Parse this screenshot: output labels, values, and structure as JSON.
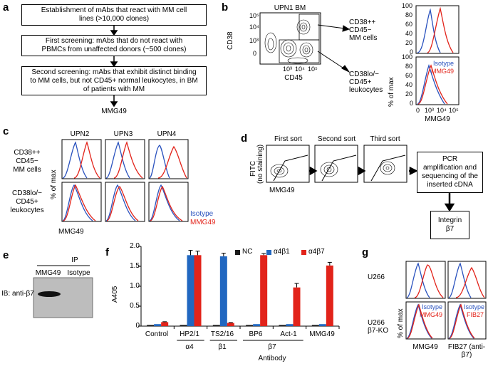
{
  "panel_a": {
    "letter": "a",
    "steps": [
      "Establishment of mAbs that react with MM cell lines (>10,000 clones)",
      "First screening: mAbs that do not react with PBMCs from unaffected donors (~500 clones)",
      "Second screening: mAbs that exhibit distinct binding to MM cells, but not CD45+ normal leukocytes, in BM of patients with MM"
    ],
    "result": "MMG49"
  },
  "panel_b": {
    "letter": "b",
    "title": "UPN1 BM",
    "x_axis": "CD45",
    "y_axis": "CD38",
    "x_ticks": [
      "10³",
      "10⁴",
      "10⁵"
    ],
    "y_ticks": [
      "10⁵",
      "10⁴",
      "10³",
      "0"
    ],
    "gate_top_label": [
      "CD38++",
      "CD45−",
      "MM cells"
    ],
    "gate_bottom_label": [
      "CD38lo/−",
      "CD45+",
      "leukocytes"
    ],
    "hist_y_label": "% of max",
    "hist_y_ticks": [
      "100",
      "80",
      "60",
      "40",
      "20",
      "0"
    ],
    "hist_x_label": "MMG49",
    "hist_x_ticks": [
      "0",
      "10³",
      "10⁴",
      "10⁵"
    ],
    "legend": [
      "Isotype",
      "MMG49"
    ]
  },
  "panel_c": {
    "letter": "c",
    "columns": [
      "UPN2",
      "UPN3",
      "UPN4"
    ],
    "row_top": [
      "CD38++",
      "CD45−",
      "MM cells"
    ],
    "row_bottom": [
      "CD38lo/−",
      "CD45+",
      "leukocytes"
    ],
    "y_label": "% of max",
    "x_label": "MMG49",
    "legend": [
      "Isotype",
      "MMG49"
    ]
  },
  "panel_d": {
    "letter": "d",
    "sorts": [
      "First sort",
      "Second sort",
      "Third sort"
    ],
    "y_label": [
      "FITC",
      "(no staining)"
    ],
    "x_label": "MMG49",
    "pcr_box": "PCR amplification and sequencing of the inserted cDNA",
    "result_box": [
      "Integrin",
      "β7"
    ]
  },
  "panel_e": {
    "letter": "e",
    "ip_label": "IP",
    "lanes": [
      "MMG49",
      "Isotype"
    ],
    "blot_label": "IB: anti-β7"
  },
  "panel_f": {
    "letter": "f",
    "chart_data": {
      "type": "bar",
      "title": "",
      "ylabel": "A405",
      "xlabel": "Antibody",
      "ylim": [
        0,
        2.0
      ],
      "yticks": [
        "0",
        "0.5",
        "1.0",
        "1.5",
        "2.0"
      ],
      "categories": [
        "Control",
        "HP2/1",
        "TS2/16",
        "BP6",
        "Act-1",
        "MMG49"
      ],
      "groups": [
        {
          "label": "α4",
          "members": [
            "HP2/1"
          ]
        },
        {
          "label": "β1",
          "members": [
            "TS2/16"
          ]
        },
        {
          "label": "β7",
          "members": [
            "BP6",
            "Act-1"
          ]
        }
      ],
      "series": [
        {
          "name": "NC",
          "color": "#1a1a1a",
          "values": [
            0.03,
            0.03,
            0.03,
            0.03,
            0.03,
            0.03
          ],
          "errors": [
            0.0,
            0.0,
            0.0,
            0.0,
            0.0,
            0.0
          ]
        },
        {
          "name": "α4β1",
          "color": "#2167c0",
          "values": [
            0.05,
            1.78,
            1.75,
            0.05,
            0.05,
            0.05
          ],
          "errors": [
            0.0,
            0.12,
            0.08,
            0.0,
            0.0,
            0.0
          ]
        },
        {
          "name": "α4β7",
          "color": "#e2231a",
          "values": [
            0.1,
            1.78,
            0.08,
            1.78,
            0.97,
            1.52
          ],
          "errors": [
            0.01,
            0.1,
            0.01,
            0.04,
            0.1,
            0.08
          ]
        }
      ]
    }
  },
  "panel_g": {
    "letter": "g",
    "rows": [
      "U266",
      "U266 β7-KO"
    ],
    "y_label": "% of max",
    "x_labels": [
      "MMG49",
      "FIB27 (anti-β7)"
    ],
    "legend_left": [
      "Isotype",
      "MMG49"
    ],
    "legend_right": [
      "Isotype",
      "FIB27"
    ]
  }
}
